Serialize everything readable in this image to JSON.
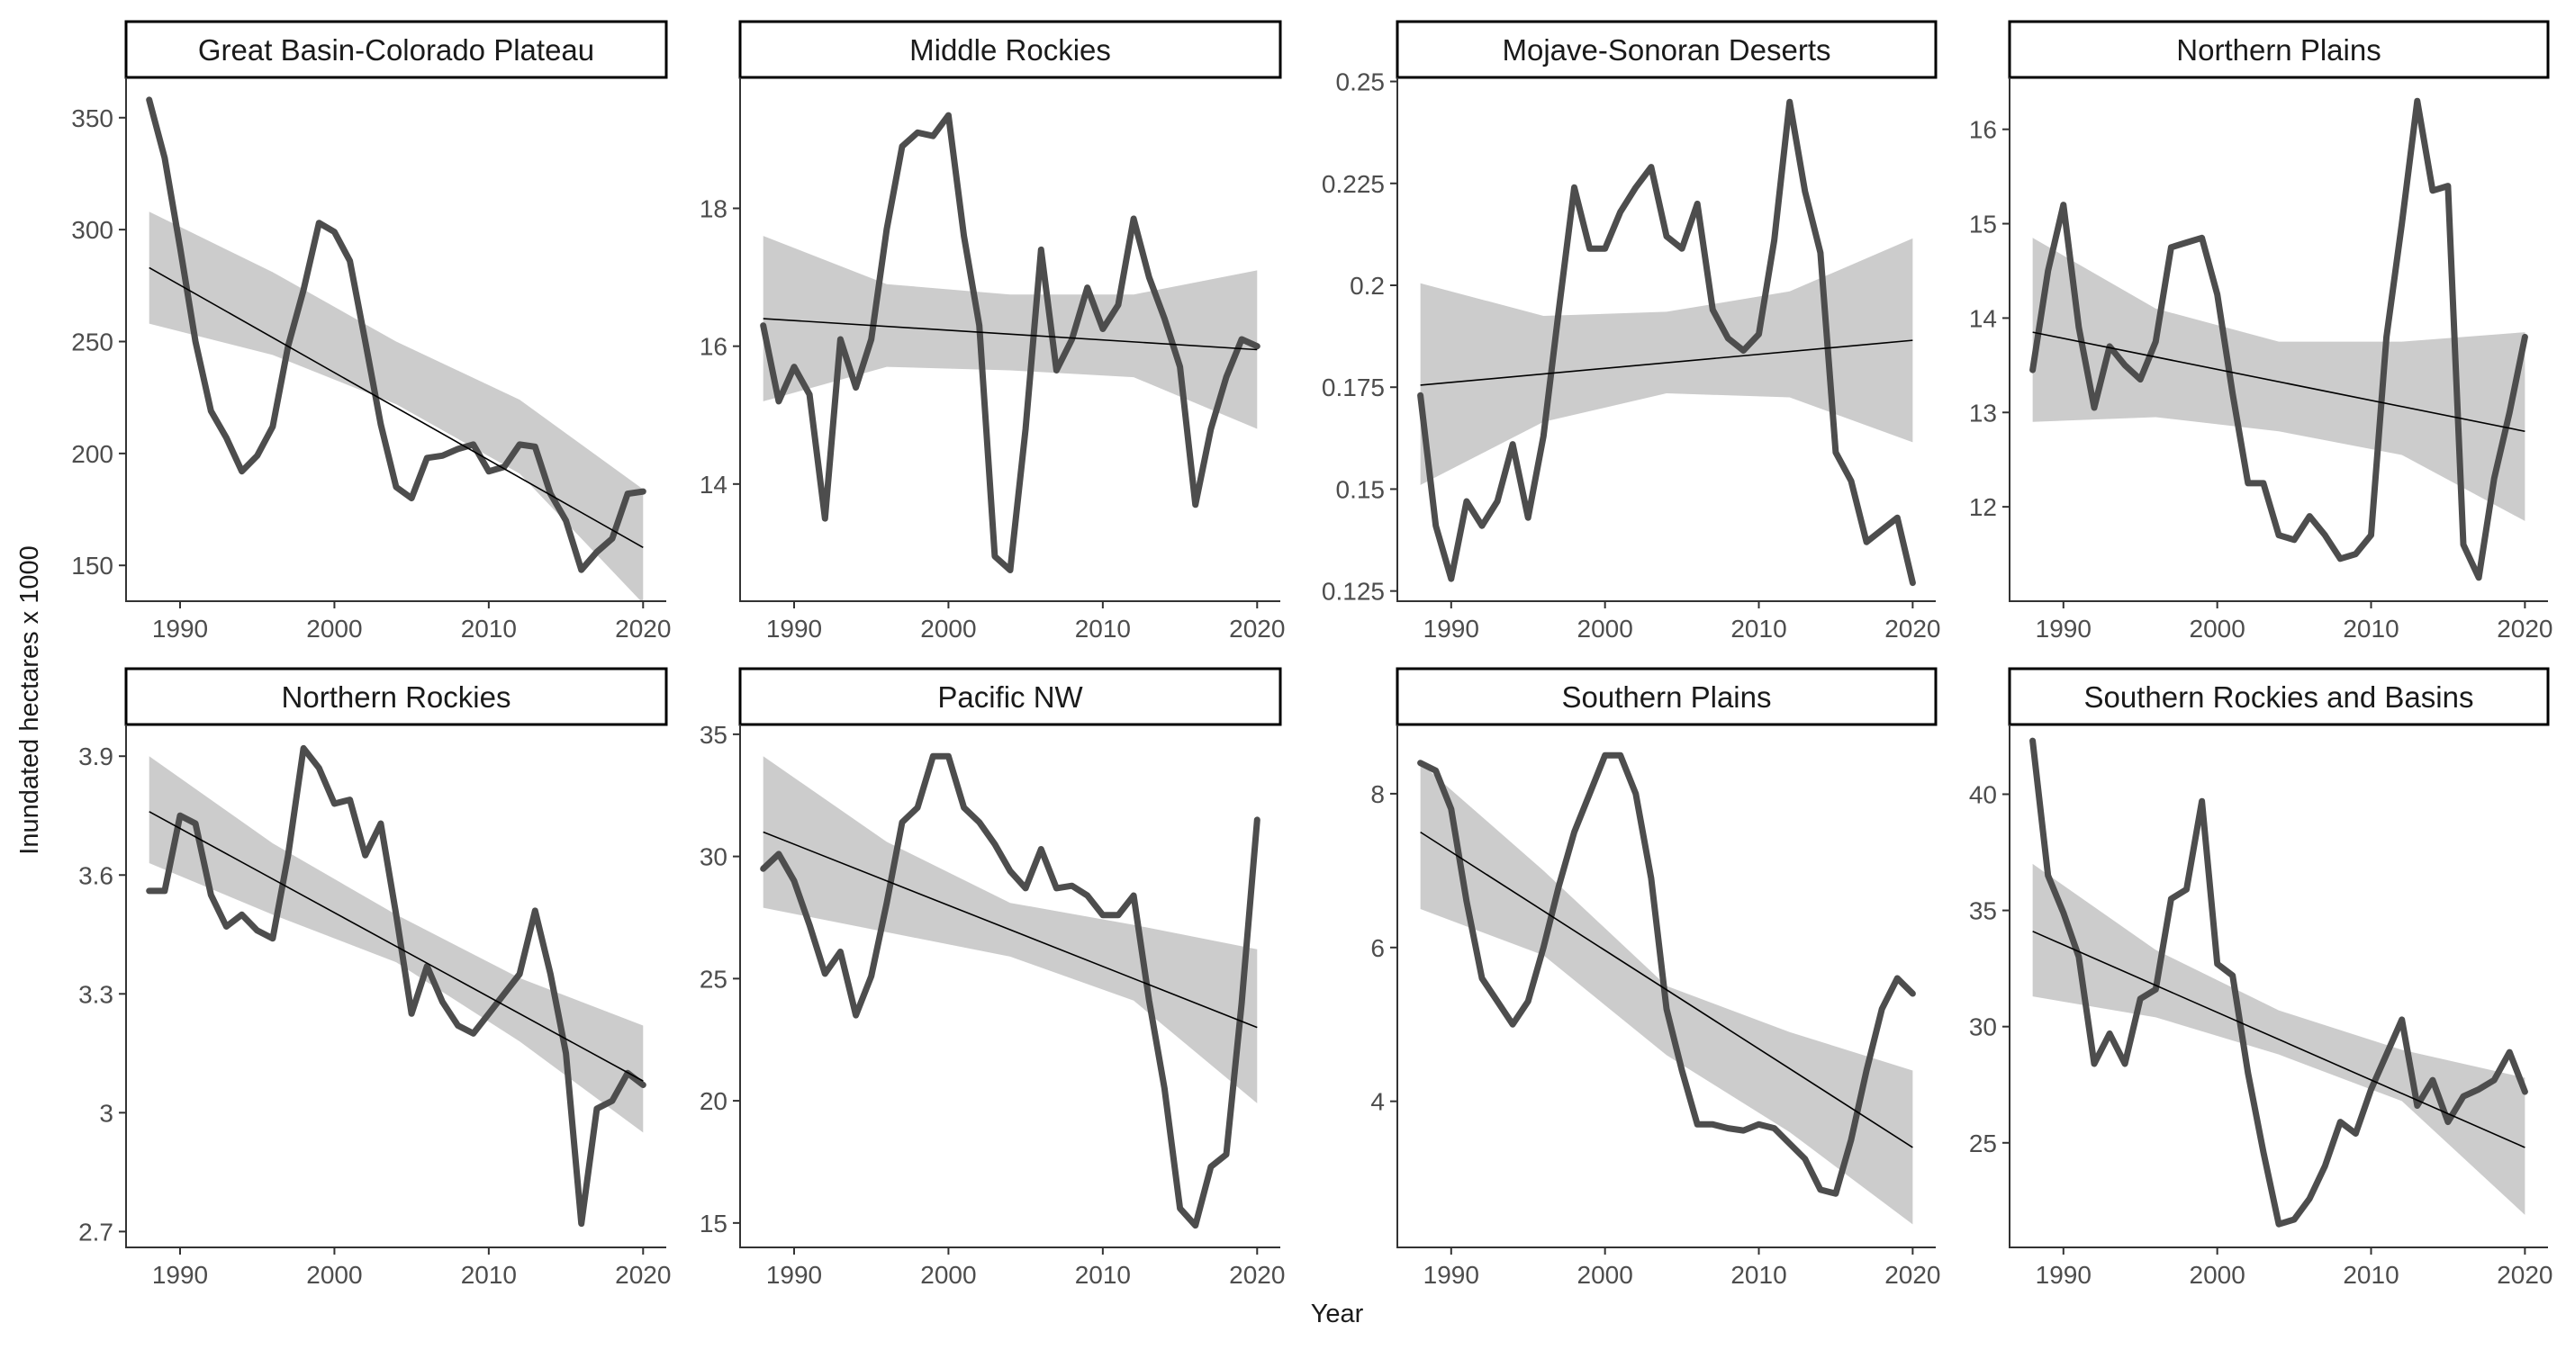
{
  "figure": {
    "xlabel": "Year",
    "ylabel": "Inundated hectares x 1000"
  },
  "colors": {
    "series_line": "#4d4d4d",
    "trend_line": "#000000",
    "confidence_band": "#cccccc",
    "axis": "#333333",
    "strip_border": "#000000"
  },
  "chart_data": [
    {
      "type": "line",
      "facet": "Great Basin-Colorado Plateau",
      "xlim": [
        1986.5,
        2021.5
      ],
      "ylim": [
        134,
        368
      ],
      "x_ticks": [
        1990,
        2000,
        2010,
        2020
      ],
      "y_ticks": [
        150,
        200,
        250,
        300,
        350
      ],
      "y_tick_labels": [
        "150",
        "200",
        "250",
        "300",
        "350"
      ],
      "x": [
        1988,
        1989,
        1990,
        1991,
        1992,
        1993,
        1994,
        1995,
        1996,
        1997,
        1998,
        1999,
        2000,
        2001,
        2002,
        2003,
        2004,
        2005,
        2006,
        2007,
        2008,
        2009,
        2010,
        2011,
        2012,
        2013,
        2014,
        2015,
        2016,
        2017,
        2018,
        2019,
        2020
      ],
      "values": [
        358,
        332,
        292,
        250,
        219,
        207,
        192,
        199,
        212,
        248,
        273,
        303,
        299,
        286,
        250,
        213,
        185,
        180,
        198,
        199,
        202,
        204,
        192,
        194,
        204,
        203,
        182,
        170,
        148,
        156,
        162,
        182,
        183
      ],
      "trend": [
        283,
        158
      ],
      "band": [
        [
          1988,
          258,
          308
        ],
        [
          1996,
          244,
          281
        ],
        [
          2004,
          222,
          250
        ],
        [
          2012,
          191,
          224
        ],
        [
          2020,
          133,
          184
        ]
      ]
    },
    {
      "type": "line",
      "facet": "Middle Rockies",
      "xlim": [
        1986.5,
        2021.5
      ],
      "ylim": [
        12.3,
        19.9
      ],
      "x_ticks": [
        1990,
        2000,
        2010,
        2020
      ],
      "y_ticks": [
        14,
        16,
        18
      ],
      "y_tick_labels": [
        "14",
        "16",
        "18"
      ],
      "x": [
        1988,
        1989,
        1990,
        1991,
        1992,
        1993,
        1994,
        1995,
        1996,
        1997,
        1998,
        1999,
        2000,
        2001,
        2002,
        2003,
        2004,
        2005,
        2006,
        2007,
        2008,
        2009,
        2010,
        2011,
        2012,
        2013,
        2014,
        2015,
        2016,
        2017,
        2018,
        2019,
        2020
      ],
      "values": [
        16.3,
        15.2,
        15.7,
        15.3,
        13.5,
        16.1,
        15.4,
        16.1,
        17.7,
        18.9,
        19.1,
        19.05,
        19.35,
        17.6,
        16.3,
        12.95,
        12.75,
        14.8,
        17.4,
        15.65,
        16.1,
        16.85,
        16.25,
        16.6,
        17.85,
        17.0,
        16.4,
        15.7,
        13.7,
        14.8,
        15.55,
        16.1,
        16.0
      ],
      "trend": [
        16.4,
        15.95
      ],
      "band": [
        [
          1988,
          15.2,
          17.6
        ],
        [
          1996,
          15.7,
          16.9
        ],
        [
          2004,
          15.65,
          16.75
        ],
        [
          2012,
          15.55,
          16.75
        ],
        [
          2020,
          14.8,
          17.1
        ]
      ]
    },
    {
      "type": "line",
      "facet": "Mojave-Sonoran Deserts",
      "xlim": [
        1986.5,
        2021.5
      ],
      "ylim": [
        0.1225,
        0.251
      ],
      "x_ticks": [
        1990,
        2000,
        2010,
        2020
      ],
      "y_ticks": [
        0.125,
        0.15,
        0.175,
        0.2,
        0.225,
        0.25
      ],
      "y_tick_labels": [
        "0.125",
        "0.15",
        "0.175",
        "0.2",
        "0.225",
        "0.25"
      ],
      "x": [
        1988,
        1989,
        1990,
        1991,
        1992,
        1993,
        1994,
        1995,
        1996,
        1997,
        1998,
        1999,
        2000,
        2001,
        2002,
        2003,
        2004,
        2005,
        2006,
        2007,
        2008,
        2009,
        2010,
        2011,
        2012,
        2013,
        2014,
        2015,
        2016,
        2017,
        2018,
        2019,
        2020
      ],
      "values": [
        0.173,
        0.141,
        0.128,
        0.147,
        0.141,
        0.147,
        0.161,
        0.143,
        0.163,
        0.194,
        0.224,
        0.209,
        0.209,
        0.218,
        0.224,
        0.229,
        0.212,
        0.209,
        0.22,
        0.194,
        0.187,
        0.184,
        0.188,
        0.211,
        0.245,
        0.223,
        0.208,
        0.159,
        0.152,
        0.137,
        0.14,
        0.143,
        0.127
      ],
      "trend": [
        0.1755,
        0.1865
      ],
      "band": [
        [
          1988,
          0.151,
          0.2005
        ],
        [
          1996,
          0.1665,
          0.1925
        ],
        [
          2004,
          0.1735,
          0.1935
        ],
        [
          2012,
          0.1725,
          0.1985
        ],
        [
          2020,
          0.1615,
          0.2115
        ]
      ]
    },
    {
      "type": "line",
      "facet": "Northern Plains",
      "xlim": [
        1986.5,
        2021.5
      ],
      "ylim": [
        11.0,
        16.55
      ],
      "x_ticks": [
        1990,
        2000,
        2010,
        2020
      ],
      "y_ticks": [
        12,
        13,
        14,
        15,
        16
      ],
      "y_tick_labels": [
        "12",
        "13",
        "14",
        "15",
        "16"
      ],
      "x": [
        1988,
        1989,
        1990,
        1991,
        1992,
        1993,
        1994,
        1995,
        1996,
        1997,
        1998,
        1999,
        2000,
        2001,
        2002,
        2003,
        2004,
        2005,
        2006,
        2007,
        2008,
        2009,
        2010,
        2011,
        2012,
        2013,
        2014,
        2015,
        2016,
        2017,
        2018,
        2019,
        2020
      ],
      "values": [
        13.45,
        14.5,
        15.2,
        13.9,
        13.05,
        13.7,
        13.5,
        13.35,
        13.75,
        14.75,
        14.8,
        14.85,
        14.25,
        13.2,
        12.25,
        12.25,
        11.7,
        11.65,
        11.9,
        11.7,
        11.45,
        11.5,
        11.7,
        13.8,
        15.0,
        16.3,
        15.35,
        15.4,
        11.6,
        11.25,
        12.3,
        13.0,
        13.8
      ],
      "trend": [
        13.85,
        12.8
      ],
      "band": [
        [
          1988,
          12.9,
          14.85
        ],
        [
          1996,
          12.95,
          14.1
        ],
        [
          2004,
          12.8,
          13.75
        ],
        [
          2012,
          12.55,
          13.75
        ],
        [
          2020,
          11.85,
          13.85
        ]
      ]
    },
    {
      "type": "line",
      "facet": "Northern Rockies",
      "xlim": [
        1986.5,
        2021.5
      ],
      "ylim": [
        2.66,
        3.98
      ],
      "x_ticks": [
        1990,
        2000,
        2010,
        2020
      ],
      "y_ticks": [
        2.7,
        3.0,
        3.3,
        3.6,
        3.9
      ],
      "y_tick_labels": [
        "2.7",
        "3",
        "3.3",
        "3.6",
        "3.9"
      ],
      "x": [
        1988,
        1989,
        1990,
        1991,
        1992,
        1993,
        1994,
        1995,
        1996,
        1997,
        1998,
        1999,
        2000,
        2001,
        2002,
        2003,
        2004,
        2005,
        2006,
        2007,
        2008,
        2009,
        2010,
        2011,
        2012,
        2013,
        2014,
        2015,
        2016,
        2017,
        2018,
        2019,
        2020
      ],
      "values": [
        3.56,
        3.56,
        3.75,
        3.73,
        3.55,
        3.47,
        3.5,
        3.46,
        3.44,
        3.65,
        3.92,
        3.87,
        3.78,
        3.79,
        3.65,
        3.73,
        3.5,
        3.25,
        3.37,
        3.28,
        3.22,
        3.2,
        3.25,
        3.3,
        3.35,
        3.51,
        3.35,
        3.15,
        2.72,
        3.01,
        3.03,
        3.1,
        3.07
      ],
      "trend": [
        3.76,
        3.08
      ],
      "band": [
        [
          1988,
          3.63,
          3.9
        ],
        [
          1996,
          3.5,
          3.68
        ],
        [
          2004,
          3.38,
          3.5
        ],
        [
          2012,
          3.18,
          3.34
        ],
        [
          2020,
          2.95,
          3.22
        ]
      ]
    },
    {
      "type": "line",
      "facet": "Pacific NW",
      "xlim": [
        1986.5,
        2021.5
      ],
      "ylim": [
        14.0,
        35.4
      ],
      "x_ticks": [
        1990,
        2000,
        2010,
        2020
      ],
      "y_ticks": [
        15,
        20,
        25,
        30,
        35
      ],
      "y_tick_labels": [
        "15",
        "20",
        "25",
        "30",
        "35"
      ],
      "x": [
        1988,
        1989,
        1990,
        1991,
        1992,
        1993,
        1994,
        1995,
        1996,
        1997,
        1998,
        1999,
        2000,
        2001,
        2002,
        2003,
        2004,
        2005,
        2006,
        2007,
        2008,
        2009,
        2010,
        2011,
        2012,
        2013,
        2014,
        2015,
        2016,
        2017,
        2018,
        2019,
        2020
      ],
      "values": [
        29.5,
        30.1,
        29.0,
        27.2,
        25.2,
        26.1,
        23.5,
        25.1,
        28.1,
        31.4,
        32.0,
        34.1,
        34.1,
        32.0,
        31.4,
        30.5,
        29.4,
        28.7,
        30.3,
        28.7,
        28.8,
        28.4,
        27.6,
        27.6,
        28.4,
        24.1,
        20.5,
        15.6,
        14.9,
        17.3,
        17.8,
        24.0,
        31.5
      ],
      "trend": [
        31.0,
        23.0
      ],
      "band": [
        [
          1988,
          27.9,
          34.1
        ],
        [
          1996,
          26.9,
          30.6
        ],
        [
          2004,
          25.9,
          28.1
        ],
        [
          2012,
          24.1,
          27.2
        ],
        [
          2020,
          19.9,
          26.2
        ]
      ]
    },
    {
      "type": "line",
      "facet": "Southern Plains",
      "xlim": [
        1986.5,
        2021.5
      ],
      "ylim": [
        2.1,
        8.9
      ],
      "x_ticks": [
        1990,
        2000,
        2010,
        2020
      ],
      "y_ticks": [
        4,
        6,
        8
      ],
      "y_tick_labels": [
        "4",
        "6",
        "8"
      ],
      "x": [
        1988,
        1989,
        1990,
        1991,
        1992,
        1993,
        1994,
        1995,
        1996,
        1997,
        1998,
        1999,
        2000,
        2001,
        2002,
        2003,
        2004,
        2005,
        2006,
        2007,
        2008,
        2009,
        2010,
        2011,
        2012,
        2013,
        2014,
        2015,
        2016,
        2017,
        2018,
        2019,
        2020
      ],
      "values": [
        8.4,
        8.3,
        7.8,
        6.6,
        5.6,
        5.3,
        5.0,
        5.3,
        6.0,
        6.8,
        7.5,
        8.0,
        8.5,
        8.5,
        8.0,
        6.9,
        5.2,
        4.4,
        3.7,
        3.7,
        3.65,
        3.62,
        3.7,
        3.65,
        3.45,
        3.25,
        2.85,
        2.8,
        3.5,
        4.4,
        5.2,
        5.6,
        5.4
      ],
      "trend": [
        7.5,
        3.4
      ],
      "band": [
        [
          1988,
          6.5,
          8.4
        ],
        [
          1996,
          5.9,
          7.0
        ],
        [
          2004,
          4.6,
          5.5
        ],
        [
          2012,
          3.6,
          4.9
        ],
        [
          2020,
          2.4,
          4.4
        ]
      ]
    },
    {
      "type": "line",
      "facet": "Southern Rockies and Basins",
      "xlim": [
        1986.5,
        2021.5
      ],
      "ylim": [
        20.5,
        43.0
      ],
      "x_ticks": [
        1990,
        2000,
        2010,
        2020
      ],
      "y_ticks": [
        25,
        30,
        35,
        40
      ],
      "y_tick_labels": [
        "25",
        "30",
        "35",
        "40"
      ],
      "x": [
        1988,
        1989,
        1990,
        1991,
        1992,
        1993,
        1994,
        1995,
        1996,
        1997,
        1998,
        1999,
        2000,
        2001,
        2002,
        2003,
        2004,
        2005,
        2006,
        2007,
        2008,
        2009,
        2010,
        2011,
        2012,
        2013,
        2014,
        2015,
        2016,
        2017,
        2018,
        2019,
        2020
      ],
      "values": [
        42.3,
        36.5,
        34.9,
        33.0,
        28.4,
        29.7,
        28.4,
        31.2,
        31.6,
        35.5,
        35.9,
        39.7,
        32.7,
        32.2,
        28.0,
        24.6,
        21.5,
        21.7,
        22.6,
        24.0,
        25.9,
        25.4,
        27.3,
        28.8,
        30.3,
        26.6,
        27.7,
        25.9,
        27.0,
        27.3,
        27.7,
        28.9,
        27.2
      ],
      "trend": [
        34.1,
        24.8
      ],
      "band": [
        [
          1988,
          31.3,
          37.0
        ],
        [
          1996,
          30.4,
          33.3
        ],
        [
          2004,
          28.8,
          30.7
        ],
        [
          2012,
          26.8,
          29.0
        ],
        [
          2020,
          21.9,
          27.8
        ]
      ]
    }
  ]
}
